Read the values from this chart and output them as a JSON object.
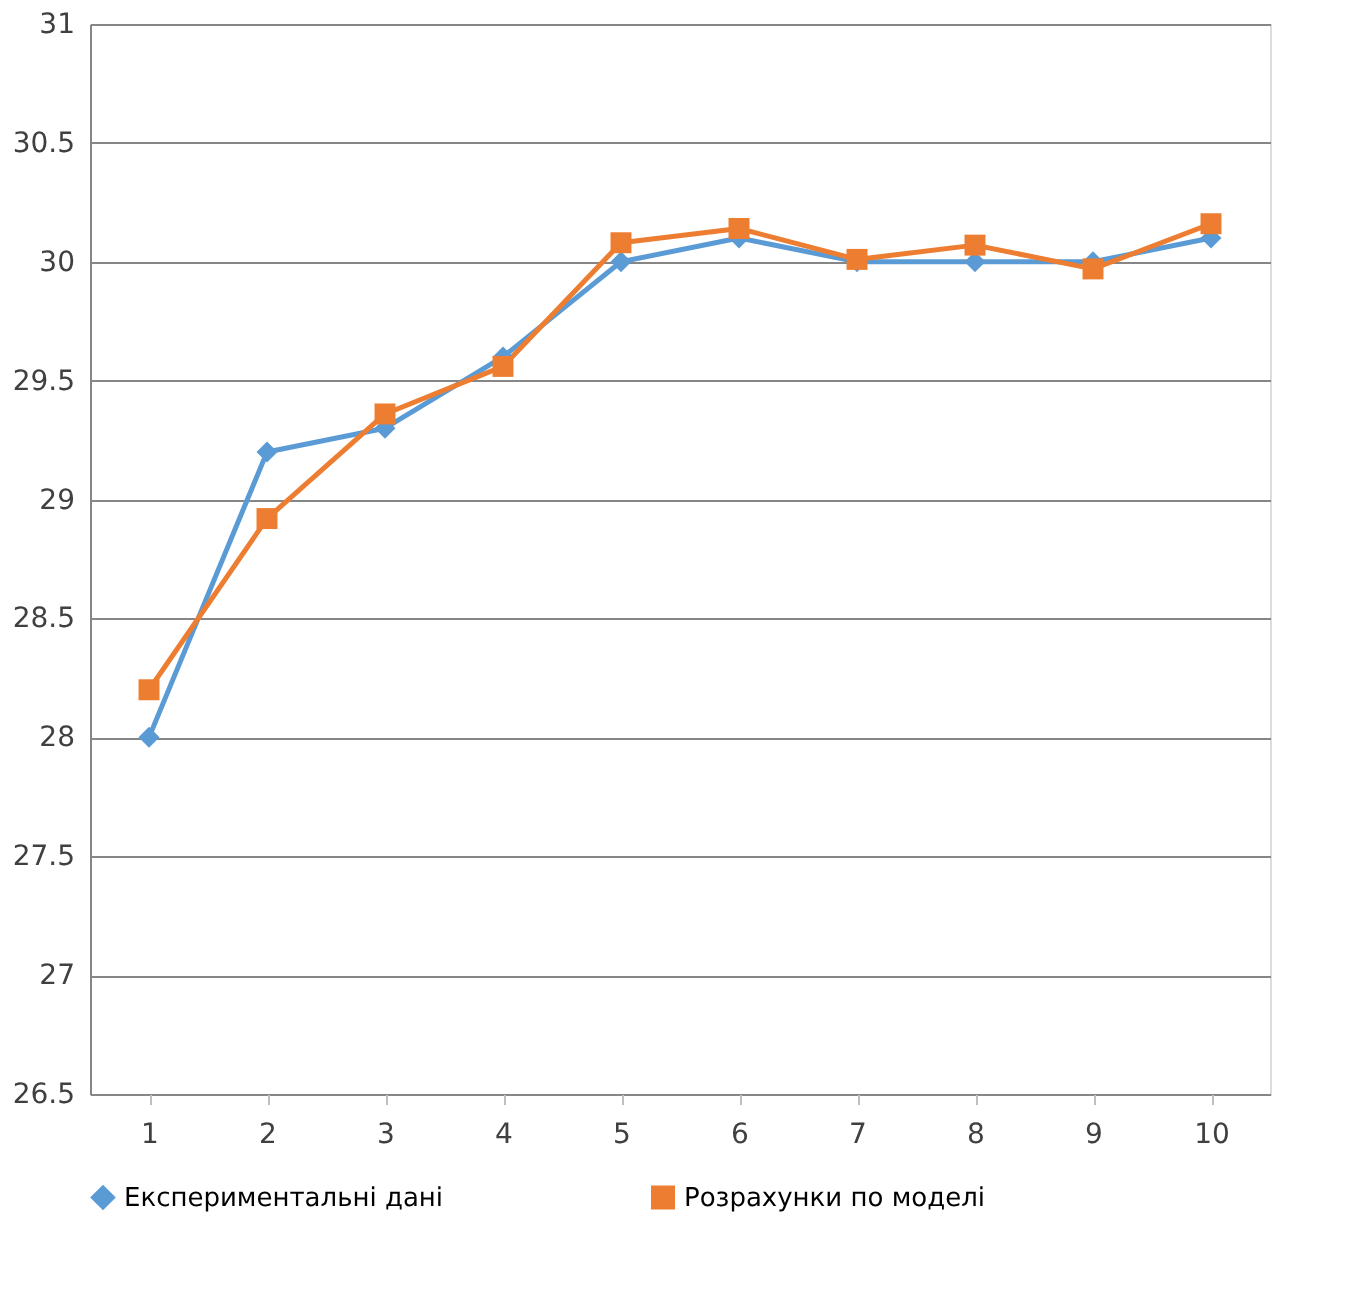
{
  "chart_data": {
    "type": "line",
    "categories": [
      "1",
      "2",
      "3",
      "4",
      "5",
      "6",
      "7",
      "8",
      "9",
      "10"
    ],
    "series": [
      {
        "name": "Експериментальні дані",
        "color": "#5b9bd5",
        "marker": "diamond",
        "values": [
          28.0,
          29.2,
          29.3,
          29.6,
          30.0,
          30.1,
          30.0,
          30.0,
          30.0,
          30.1
        ]
      },
      {
        "name": "Розрахунки по моделі",
        "color": "#ed7d31",
        "marker": "square",
        "values": [
          28.2,
          28.92,
          29.36,
          29.56,
          30.08,
          30.14,
          30.01,
          30.07,
          29.97,
          30.16
        ]
      }
    ],
    "ylim": [
      26.5,
      31
    ],
    "yticks": [
      26.5,
      27,
      27.5,
      28,
      28.5,
      29,
      29.5,
      30,
      30.5,
      31
    ],
    "grid": "y",
    "legend": "bottom",
    "line_style": "solid"
  }
}
